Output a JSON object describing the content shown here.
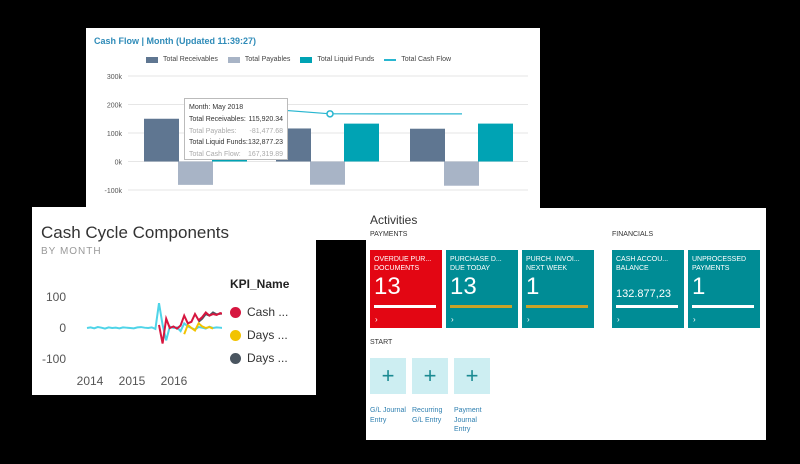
{
  "cashflow": {
    "title": "Cash Flow | Month (Updated 11:39:27)",
    "legend": [
      {
        "label": "Total Receivables",
        "color": "#5f7691",
        "kind": "bar"
      },
      {
        "label": "Total Payables",
        "color": "#a8b4c6",
        "kind": "bar"
      },
      {
        "label": "Total Liquid Funds",
        "color": "#00a3b4",
        "kind": "bar"
      },
      {
        "label": "Total Cash Flow",
        "color": "#29b6d0",
        "kind": "line"
      }
    ],
    "tooltip": {
      "month": "Month: May 2018",
      "rows": [
        {
          "label": "Total Receivables:",
          "value": "115,920.34",
          "faded": false
        },
        {
          "label": "Total Payables:",
          "value": "-81,477.68",
          "faded": true
        },
        {
          "label": "Total Liquid Funds:",
          "value": "132,877.23",
          "faded": false
        },
        {
          "label": "Total Cash Flow:",
          "value": "167,319.89",
          "faded": true
        }
      ]
    }
  },
  "chart_data": [
    {
      "type": "bar",
      "title": "Cash Flow | Month (Updated 11:39:27)",
      "yticks": [
        "300k",
        "200k",
        "100k",
        "0k",
        "-100k"
      ],
      "ylim": [
        -100000,
        300000
      ],
      "groups": 3,
      "series": [
        {
          "name": "Total Receivables",
          "values": [
            150000,
            115920.34,
            115000
          ]
        },
        {
          "name": "Total Payables",
          "values": [
            -82000,
            -81477.68,
            -85000
          ]
        },
        {
          "name": "Total Liquid Funds",
          "values": [
            131000,
            132877.23,
            133000
          ]
        }
      ],
      "line": {
        "name": "Total Cash Flow",
        "values": [
          199000,
          167319.89,
          167000
        ]
      }
    },
    {
      "type": "line",
      "title": "Cash Cycle Components",
      "subtitle": "BY MONTH",
      "yticks": [
        "100",
        "0",
        "-100"
      ],
      "xticks": [
        "2014",
        "2015",
        "2016"
      ],
      "ylim": [
        -100,
        100
      ],
      "legend_title": "KPI_Name",
      "series": [
        {
          "name": "Cash ...",
          "color": "#d6163f"
        },
        {
          "name": "Days ...",
          "color": "#f2c300"
        },
        {
          "name": "Days ...",
          "color": "#4a5560"
        }
      ]
    }
  ],
  "cashcycle": {
    "title": "Cash Cycle Components",
    "subtitle": "BY MONTH",
    "legend_title": "KPI_Name",
    "kpis": [
      {
        "label": "Cash ...",
        "color": "#d6163f"
      },
      {
        "label": "Days ...",
        "color": "#f2c300"
      },
      {
        "label": "Days ...",
        "color": "#4a5560"
      }
    ],
    "yticks": [
      "100",
      "0",
      "-100"
    ],
    "xticks": [
      "2014",
      "2015",
      "2016"
    ]
  },
  "activities": {
    "title": "Activities",
    "payments_label": "PAYMENTS",
    "financials_label": "FINANCIALS",
    "start_label": "START",
    "tiles": [
      {
        "label": "OVERDUE PUR... DOCUMENTS",
        "value": "13",
        "color": "#e30613",
        "bar": "#ffffff"
      },
      {
        "label": "PURCHASE D... DUE TODAY",
        "value": "13",
        "color": "#008c95",
        "bar": "#c9a227"
      },
      {
        "label": "PURCH. INVOI... NEXT WEEK",
        "value": "1",
        "color": "#008c95",
        "bar": "#c9a227"
      },
      {
        "label": "CASH ACCOU... BALANCE",
        "value": "132.877,23",
        "color": "#008c95",
        "bar": "#ffffff"
      },
      {
        "label": "UNPROCESSED PAYMENTS",
        "value": "1",
        "color": "#008c95",
        "bar": "#ffffff"
      }
    ],
    "arrow": "›",
    "start_items": [
      {
        "label": "G/L Journal Entry"
      },
      {
        "label": "Recurring G/L Entry"
      },
      {
        "label": "Payment Journal Entry"
      }
    ],
    "plus": "+"
  }
}
